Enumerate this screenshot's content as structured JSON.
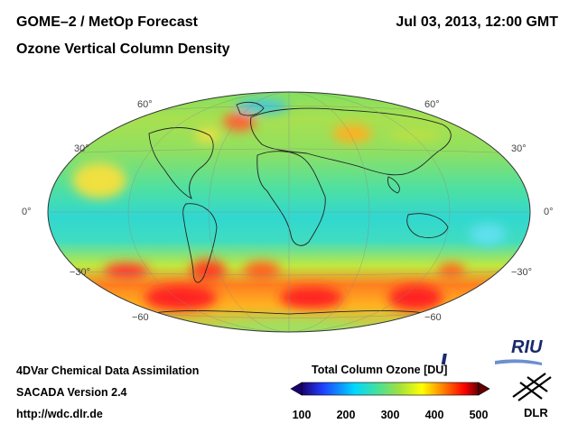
{
  "header": {
    "instrument": "GOME–2 / MetOp Forecast",
    "product": "Ozone Vertical Column Density",
    "datetime": "Jul 03, 2013, 12:00 GMT"
  },
  "map": {
    "projection": "Mollweide",
    "lat_labels_left": [
      "60°",
      "30°",
      "0°",
      "−30°",
      "−60"
    ],
    "lat_labels_right": [
      "60°",
      "30°",
      "0°",
      "−30°",
      "−60"
    ]
  },
  "colorbar": {
    "title": "Total Column Ozone [DU]",
    "ticks": [
      "100",
      "200",
      "300",
      "400",
      "500"
    ],
    "min": 100,
    "max": 500,
    "colors": [
      "#1a0070",
      "#2040ff",
      "#00d8ff",
      "#40e0a0",
      "#a0e040",
      "#ffff00",
      "#ff8000",
      "#ff0000",
      "#600000"
    ]
  },
  "footer": {
    "line1": "4DVar Chemical Data Assimilation",
    "line2": "SACADA Version 2.4",
    "line3": "http://wdc.dlr.de"
  },
  "logos": {
    "riu": "RIU",
    "dlr": "DLR"
  }
}
